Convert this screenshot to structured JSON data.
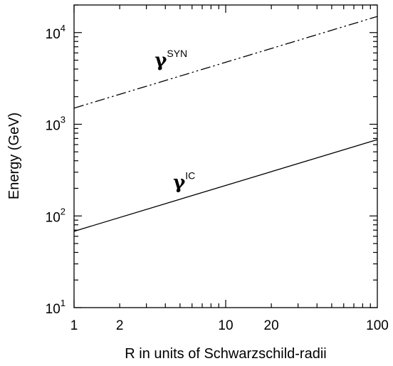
{
  "chart_data": {
    "type": "line",
    "xlabel": "R in units of Schwarzschild-radii",
    "ylabel": "Energy (GeV)",
    "xscale": "log",
    "yscale": "log",
    "xlim": [
      1,
      100
    ],
    "ylim": [
      10,
      20000
    ],
    "x_ticks": [
      {
        "value": 1,
        "label": "1"
      },
      {
        "value": 2,
        "label": "2"
      },
      {
        "value": 10,
        "label": "10"
      },
      {
        "value": 20,
        "label": "20"
      },
      {
        "value": 100,
        "label": "100"
      }
    ],
    "y_ticks": [
      {
        "value": 10,
        "base": "10",
        "exp": "1"
      },
      {
        "value": 100,
        "base": "10",
        "exp": "2"
      },
      {
        "value": 1000,
        "base": "10",
        "exp": "3"
      },
      {
        "value": 10000,
        "base": "10",
        "exp": "4"
      }
    ],
    "grid": false,
    "legend": "none",
    "series": [
      {
        "line_style": "dash-dot-dot",
        "x": [
          1,
          100
        ],
        "y": [
          1500,
          15000
        ]
      },
      {
        "line_style": "solid",
        "x": [
          1,
          100
        ],
        "y": [
          68,
          680
        ]
      }
    ],
    "annotations": [
      {
        "symbol": "γ",
        "superscript": "SYN",
        "x": 3.4,
        "y": 4300
      },
      {
        "symbol": "γ",
        "superscript": "IC",
        "x": 4.5,
        "y": 200
      }
    ]
  }
}
